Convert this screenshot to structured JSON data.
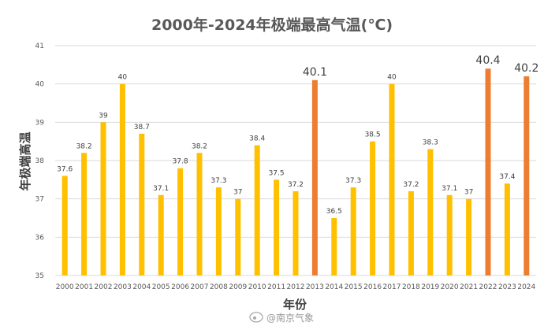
{
  "chart_data": {
    "type": "bar",
    "title": "2000年-2024年极端最高气温(℃)",
    "xlabel": "年份",
    "ylabel": "年极端高温",
    "ylim": [
      35,
      41
    ],
    "yticks": [
      "35",
      "36",
      "37",
      "38",
      "39",
      "40",
      "41"
    ],
    "grid": true,
    "legend": "none",
    "categories": [
      "2000",
      "2001",
      "2002",
      "2003",
      "2004",
      "2005",
      "2006",
      "2007",
      "2008",
      "2009",
      "2010",
      "2011",
      "2012",
      "2013",
      "2014",
      "2015",
      "2016",
      "2017",
      "2018",
      "2019",
      "2020",
      "2021",
      "2022",
      "2023",
      "2024"
    ],
    "values": [
      37.6,
      38.2,
      39,
      40,
      38.7,
      37.1,
      37.8,
      38.2,
      37.3,
      37,
      38.4,
      37.5,
      37.2,
      40.1,
      36.5,
      37.3,
      38.5,
      40,
      37.2,
      38.3,
      37.1,
      37,
      40.4,
      37.4,
      40.2
    ],
    "value_labels": [
      "37.6",
      "38.2",
      "39",
      "40",
      "38.7",
      "37.1",
      "37.8",
      "38.2",
      "37.3",
      "37",
      "38.4",
      "37.5",
      "37.2",
      "40.1",
      "36.5",
      "37.3",
      "38.5",
      "40",
      "37.2",
      "38.3",
      "37.1",
      "37",
      "40.4",
      "37.4",
      "40.2"
    ],
    "highlighted_years": [
      "2013",
      "2022",
      "2024"
    ],
    "colors": {
      "default_bar": "#FFC000",
      "highlight_bar": "#ED7D31",
      "highlight_label": "#ED7D31",
      "grid": "#D9D9D9",
      "label": "#404040",
      "tick": "#595959"
    }
  },
  "watermark": {
    "text": "@南京气象"
  }
}
